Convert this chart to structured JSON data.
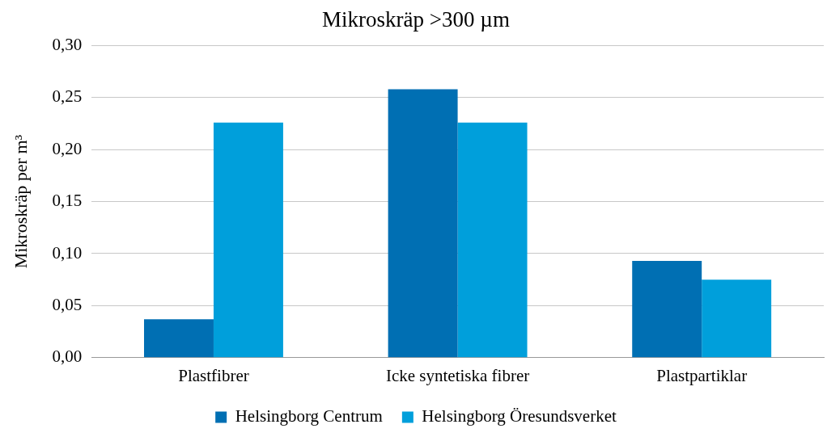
{
  "chart_data": {
    "type": "bar",
    "title": "Mikroskräp >300 µm",
    "ylabel": "Mikroskräp per m³",
    "categories": [
      "Plastfibrer",
      "Icke syntetiska fibrer",
      "Plastpartiklar"
    ],
    "series": [
      {
        "name": "Helsingborg Centrum",
        "color": "#006fb3",
        "values": [
          0.037,
          0.258,
          0.093
        ]
      },
      {
        "name": "Helsingborg Öresundsverket",
        "color": "#009fdb",
        "values": [
          0.226,
          0.226,
          0.075
        ]
      }
    ],
    "ylim": [
      0,
      0.3
    ],
    "yticks": [
      {
        "value": 0,
        "label": "0,00"
      },
      {
        "value": 0.05,
        "label": "0,05"
      },
      {
        "value": 0.1,
        "label": "0,10"
      },
      {
        "value": 0.15,
        "label": "0,15"
      },
      {
        "value": 0.2,
        "label": "0,20"
      },
      {
        "value": 0.25,
        "label": "0,25"
      },
      {
        "value": 0.3,
        "label": "0,30"
      }
    ],
    "grid": "y",
    "legend": "bottom"
  }
}
